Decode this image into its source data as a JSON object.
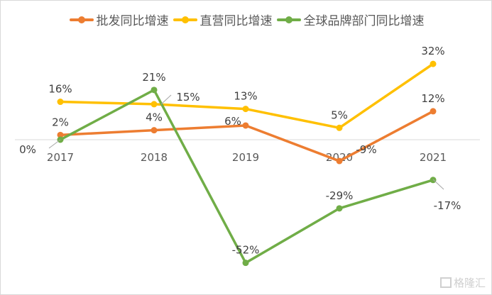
{
  "chart_data": {
    "type": "line",
    "categories": [
      "2017",
      "2018",
      "2019",
      "2020",
      "2021"
    ],
    "series": [
      {
        "name": "批发同比增速",
        "color": "#ED7D31",
        "values": [
          2,
          4,
          6,
          -9,
          12
        ],
        "labels": [
          "2%",
          "4%",
          "6%",
          "-9%",
          "12%"
        ]
      },
      {
        "name": "直营同比增速",
        "color": "#FFC000",
        "values": [
          16,
          15,
          13,
          5,
          32
        ],
        "labels": [
          "16%",
          "15%",
          "13%",
          "5%",
          "32%"
        ]
      },
      {
        "name": "全球品牌部门同比增速",
        "color": "#70AD47",
        "values": [
          0,
          21,
          -52,
          -29,
          -17
        ],
        "labels": [
          "0%",
          "21%",
          "-52%",
          "-29%",
          "-17%"
        ]
      }
    ],
    "legend_position": "top",
    "grid": false,
    "xlabel": "",
    "ylabel": "",
    "title": ""
  },
  "watermark": "格隆汇"
}
